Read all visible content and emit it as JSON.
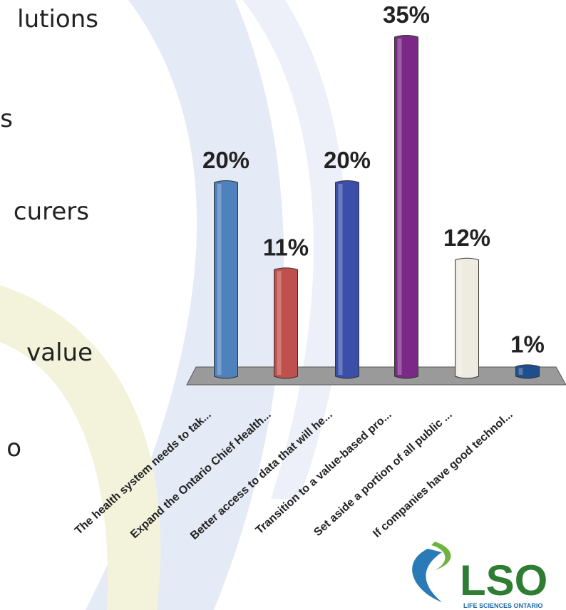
{
  "slide_text": [
    "lutions",
    "s",
    "curers",
    "value",
    "o"
  ],
  "logo": {
    "name": "LSO",
    "tagline": "LIFE SCIENCES ONTARIO"
  },
  "chart_data": {
    "type": "bar",
    "categories": [
      "The health system needs to tak...",
      "Expand the Ontario Chief Health...",
      "Better access to data that will he...",
      "Transition to a value-based pro...",
      "Set aside a portion of all public ...",
      "If companies have good technol..."
    ],
    "values": [
      20,
      11,
      20,
      35,
      12,
      1
    ],
    "value_labels": [
      "20%",
      "11%",
      "20%",
      "35%",
      "12%",
      "1%"
    ],
    "colors": [
      "#4f81bd",
      "#c0504d",
      "#3b4fa8",
      "#7a2a86",
      "#eeece1",
      "#1f4e8c"
    ]
  }
}
